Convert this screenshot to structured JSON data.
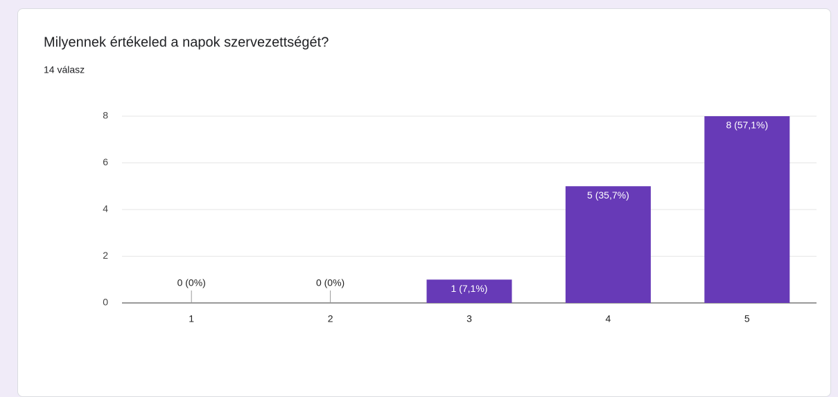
{
  "chart_data": {
    "type": "bar",
    "title": "Milyennek értékeled a napok szervezettségét?",
    "subtitle": "14 válasz",
    "categories": [
      "1",
      "2",
      "3",
      "4",
      "5"
    ],
    "values": [
      0,
      0,
      1,
      5,
      8
    ],
    "value_labels": [
      "0 (0%)",
      "0 (0%)",
      "1 (7,1%)",
      "5 (35,7%)",
      "8 (57,1%)"
    ],
    "color": "#673ab7",
    "ylim": [
      0,
      8
    ],
    "yticks": [
      0,
      2,
      4,
      6,
      8
    ],
    "grid": true
  }
}
